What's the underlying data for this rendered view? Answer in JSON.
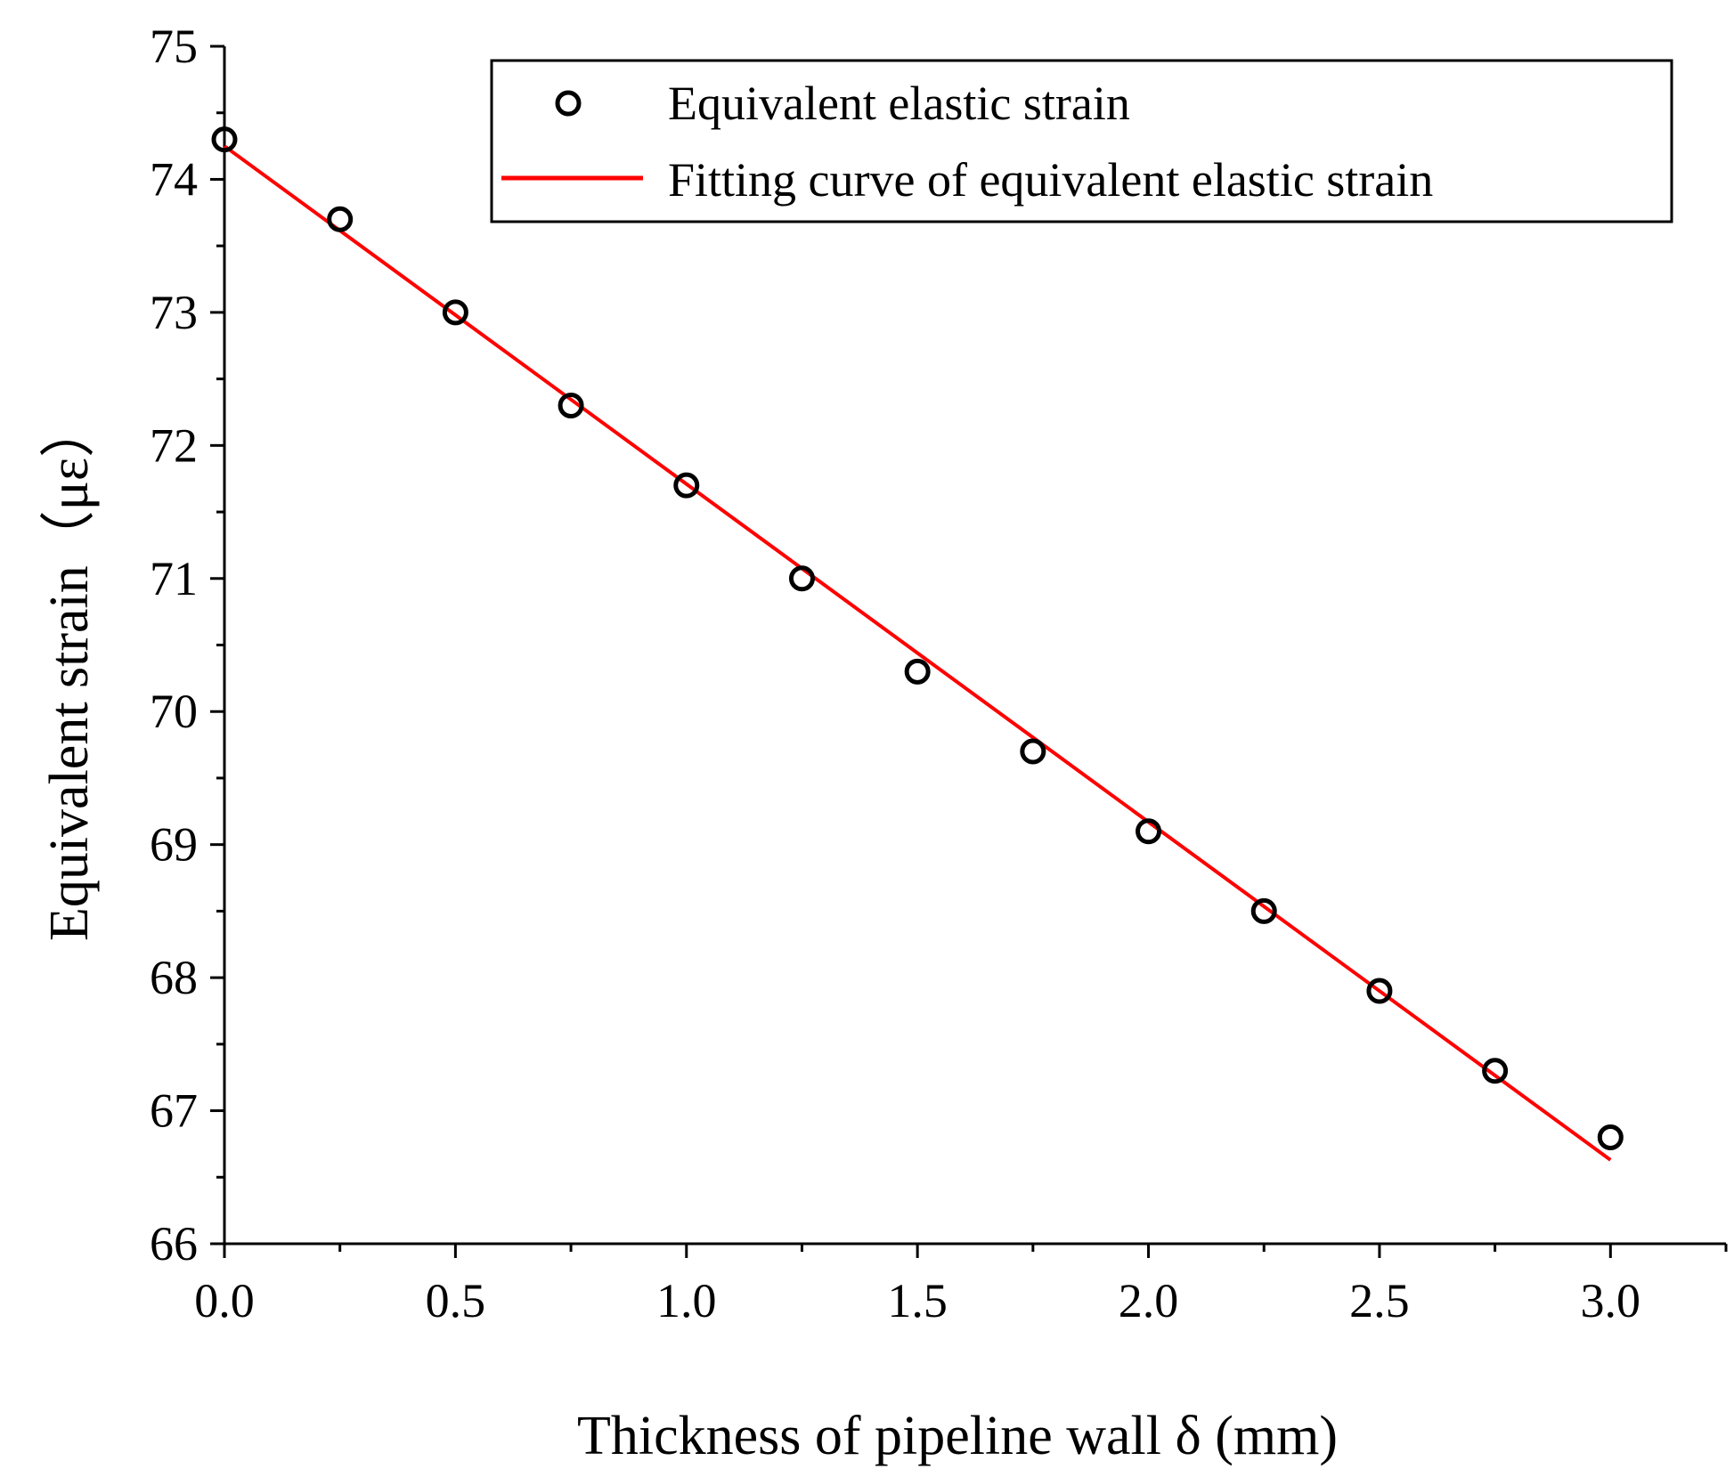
{
  "chart_data": {
    "type": "scatter",
    "title": "",
    "xlabel": "Thickness of pipeline wall δ (mm)",
    "ylabel": "Equivalent strain（με）",
    "xlim": [
      0,
      3.25
    ],
    "ylim": [
      66,
      75
    ],
    "x_ticks": [
      "0.0",
      "0.5",
      "1.0",
      "1.5",
      "2.0",
      "2.5",
      "3.0"
    ],
    "y_ticks": [
      "66",
      "67",
      "68",
      "69",
      "70",
      "71",
      "72",
      "73",
      "74",
      "75"
    ],
    "legend_position": "top-right",
    "series": [
      {
        "name": "Equivalent elastic strain",
        "kind": "scatter",
        "marker": "open-circle",
        "color": "#000000",
        "x": [
          0,
          0.25,
          0.5,
          0.75,
          1.0,
          1.25,
          1.5,
          1.75,
          2.0,
          2.25,
          2.5,
          2.75,
          3.0
        ],
        "y": [
          74.3,
          73.7,
          73.0,
          72.3,
          71.7,
          71.0,
          70.3,
          69.7,
          69.1,
          68.5,
          67.9,
          67.3,
          66.8
        ]
      },
      {
        "name": "Fitting curve of equivalent elastic strain",
        "kind": "line",
        "color": "#ff0000",
        "x": [
          0,
          3.0
        ],
        "y": [
          74.25,
          66.63
        ]
      }
    ]
  }
}
